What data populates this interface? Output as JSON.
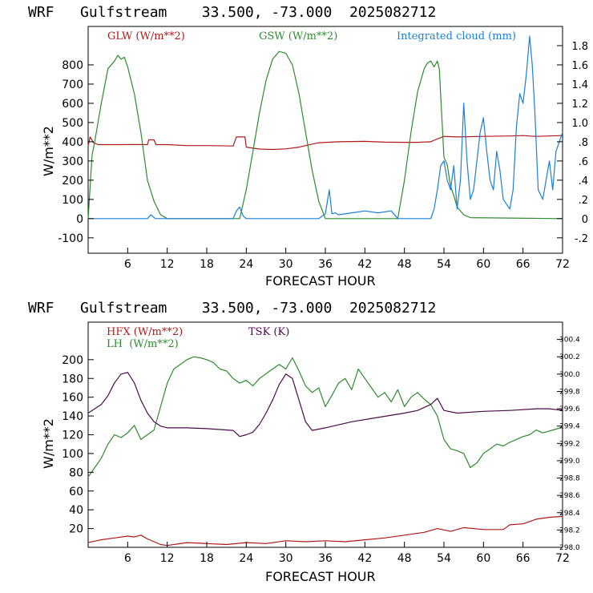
{
  "chart_data": [
    {
      "type": "line",
      "title": "WRF   Gulfstream    33.500, -73.000  2025082712",
      "xlabel": "FORECAST HOUR",
      "ylabel": "W/m**2",
      "xlim": [
        0,
        72
      ],
      "ylim": [
        -180,
        1000
      ],
      "y2lim": [
        -0.36,
        2.0
      ],
      "xticks": [
        6,
        12,
        18,
        24,
        30,
        36,
        42,
        48,
        54,
        60,
        66,
        72
      ],
      "yticks": [
        -100,
        0,
        100,
        200,
        300,
        400,
        500,
        600,
        700,
        800
      ],
      "y2ticks": [
        -0.2,
        0,
        0.2,
        0.4,
        0.6,
        0.8,
        1.0,
        1.2,
        1.4,
        1.6,
        1.8
      ],
      "y2ticklabels": [
        "-.2",
        "0",
        ".2",
        ".4",
        ".6",
        ".8",
        "1.0",
        "1.2",
        "1.4",
        "1.6",
        "1.8"
      ],
      "legend_position": "top",
      "series": [
        {
          "name": "GLW (W/m**2)",
          "color": "#b01818",
          "axis": "left",
          "x": [
            0,
            0.3,
            0.8,
            1.5,
            3,
            5,
            7,
            9,
            9.2,
            10,
            10.3,
            12,
            15,
            18,
            22,
            22.5,
            23.8,
            24,
            26,
            28,
            30,
            32,
            33,
            35,
            38,
            42,
            45,
            48,
            50,
            52,
            52.5,
            54,
            56,
            60,
            64,
            66,
            68,
            70,
            72
          ],
          "values": [
            380,
            425,
            395,
            385,
            385,
            385,
            386,
            385,
            410,
            410,
            385,
            385,
            380,
            380,
            378,
            425,
            425,
            372,
            362,
            360,
            363,
            372,
            380,
            395,
            400,
            402,
            398,
            397,
            397,
            400,
            408,
            428,
            425,
            428,
            430,
            432,
            428,
            430,
            432
          ]
        },
        {
          "name": "GSW (W/m**2)",
          "color": "#2e8b2e",
          "axis": "left",
          "x": [
            0,
            0.6,
            1,
            2,
            3,
            4,
            4.5,
            5,
            5.5,
            6,
            7,
            8,
            9,
            10,
            11,
            12,
            23,
            24,
            25,
            26,
            27,
            28,
            29,
            30,
            31,
            32,
            33,
            34,
            35,
            36,
            47,
            48,
            49,
            50,
            51,
            51.5,
            52,
            52.5,
            53,
            53.3,
            54,
            54.5,
            55,
            55.5,
            56,
            57,
            58,
            72
          ],
          "values": [
            0,
            330,
            400,
            600,
            780,
            820,
            850,
            830,
            840,
            790,
            650,
            450,
            200,
            90,
            20,
            0,
            0,
            150,
            350,
            550,
            720,
            830,
            870,
            860,
            800,
            650,
            450,
            250,
            90,
            0,
            0,
            200,
            450,
            660,
            780,
            810,
            820,
            790,
            820,
            780,
            320,
            280,
            170,
            120,
            60,
            20,
            5,
            0
          ]
        },
        {
          "name": "Integrated cloud (mm)",
          "color": "#1a7fd8",
          "axis": "right",
          "x": [
            0,
            9,
            9.5,
            10.2,
            12,
            22,
            22.5,
            23,
            23.5,
            24,
            30,
            35,
            36,
            36.6,
            37,
            37.5,
            38,
            40,
            42,
            44,
            46,
            47,
            52,
            52.5,
            53,
            53.5,
            54,
            54.5,
            55,
            55.5,
            56,
            56.5,
            57,
            57.5,
            58,
            58.5,
            59,
            59.5,
            60,
            60.5,
            61,
            61.5,
            62,
            62.5,
            63,
            63.5,
            64,
            64.5,
            65,
            65.5,
            66,
            66.5,
            67,
            67.4,
            67.8,
            68.3,
            69,
            69.5,
            70,
            70.5,
            71,
            71.5,
            72
          ],
          "values": [
            0,
            0,
            0.04,
            0,
            0,
            0,
            0.08,
            0.12,
            0.03,
            0,
            0,
            0,
            0.05,
            0.3,
            0.05,
            0.06,
            0.04,
            0.06,
            0.08,
            0.06,
            0.08,
            0,
            0,
            0.1,
            0.3,
            0.55,
            0.6,
            0.4,
            0.3,
            0.55,
            0.1,
            0.4,
            1.2,
            0.6,
            0.2,
            0.3,
            0.6,
            0.9,
            1.05,
            0.7,
            0.4,
            0.3,
            0.7,
            0.5,
            0.2,
            0.15,
            0.1,
            0.3,
            0.95,
            1.3,
            1.2,
            1.5,
            1.9,
            1.6,
            1.1,
            0.3,
            0.2,
            0.4,
            0.6,
            0.3,
            0.7,
            0.8,
            0.9
          ]
        }
      ]
    },
    {
      "type": "line",
      "title": "WRF   Gulfstream    33.500, -73.000  2025082712",
      "xlabel": "FORECAST HOUR",
      "ylabel": "W/m**2",
      "xlim": [
        0,
        72
      ],
      "ylim": [
        0,
        240
      ],
      "y2lim": [
        298.0,
        300.6
      ],
      "xticks": [
        6,
        12,
        18,
        24,
        30,
        36,
        42,
        48,
        54,
        60,
        66,
        72
      ],
      "yticks": [
        20,
        40,
        60,
        80,
        100,
        120,
        140,
        160,
        180,
        200
      ],
      "y2ticks": [
        298.0,
        298.2,
        298.4,
        298.6,
        298.8,
        299.0,
        299.2,
        299.4,
        299.6,
        299.8,
        300.0,
        300.2,
        300.4
      ],
      "y2ticklabels": [
        "298.0",
        "298.2",
        "298.4",
        "298.6",
        "298.8",
        "299.0",
        "299.2",
        "299.4",
        "299.6",
        "299.8",
        "300.0",
        "300.2",
        "300.4"
      ],
      "legend_position": "top",
      "series": [
        {
          "name": "HFX (W/m**2)",
          "color": "#b01818",
          "axis": "left",
          "x": [
            0,
            2,
            4,
            6,
            7,
            8,
            9,
            10,
            11,
            12,
            15,
            18,
            21,
            24,
            27,
            30,
            33,
            36,
            39,
            42,
            45,
            48,
            51,
            53,
            55,
            57,
            60,
            63,
            64,
            66,
            68,
            70,
            72
          ],
          "values": [
            5,
            8,
            10,
            12,
            11,
            13,
            9,
            6,
            3,
            2,
            5,
            4,
            3,
            5,
            4,
            7,
            6,
            7,
            6,
            8,
            10,
            13,
            16,
            20,
            17,
            21,
            19,
            19,
            24,
            25,
            30,
            32,
            33
          ]
        },
        {
          "name": "LH  (W/m**2)",
          "color": "#2e8b2e",
          "axis": "left",
          "x": [
            0,
            1,
            2,
            3,
            4,
            5,
            6,
            7,
            8,
            9,
            10,
            11,
            12,
            13,
            14,
            15,
            16,
            17,
            18,
            19,
            20,
            21,
            22,
            23,
            24,
            25,
            26,
            27,
            28,
            29,
            30,
            31,
            32,
            33,
            34,
            35,
            36,
            37,
            38,
            39,
            40,
            41,
            42,
            43,
            44,
            45,
            46,
            47,
            48,
            49,
            50,
            51,
            52,
            53,
            54,
            55,
            56,
            57,
            58,
            59,
            60,
            61,
            62,
            63,
            64,
            65,
            66,
            67,
            68,
            69,
            70,
            71,
            72
          ],
          "values": [
            75,
            85,
            95,
            110,
            120,
            117,
            122,
            130,
            115,
            120,
            125,
            150,
            175,
            190,
            195,
            200,
            203,
            202,
            200,
            197,
            190,
            188,
            180,
            175,
            178,
            172,
            180,
            185,
            190,
            195,
            190,
            202,
            188,
            172,
            165,
            170,
            150,
            162,
            175,
            180,
            168,
            190,
            180,
            170,
            160,
            165,
            155,
            168,
            150,
            160,
            165,
            158,
            152,
            140,
            115,
            105,
            103,
            100,
            85,
            90,
            100,
            105,
            110,
            108,
            112,
            115,
            118,
            120,
            125,
            122,
            124,
            126,
            128
          ]
        },
        {
          "name": "TSK (K)",
          "color": "#4b0a4b",
          "axis": "right",
          "x": [
            0,
            1,
            2,
            3,
            4,
            5,
            6,
            7,
            8,
            9,
            10,
            11,
            12,
            15,
            18,
            20,
            22,
            23,
            24,
            25,
            26,
            27,
            28,
            29,
            30,
            31,
            32,
            33,
            34,
            36,
            40,
            44,
            48,
            50,
            52,
            53,
            54,
            56,
            60,
            64,
            68,
            70,
            72
          ],
          "values": [
            299.55,
            299.6,
            299.65,
            299.75,
            299.9,
            300.0,
            300.02,
            299.9,
            299.7,
            299.55,
            299.45,
            299.4,
            299.38,
            299.38,
            299.37,
            299.36,
            299.35,
            299.28,
            299.3,
            299.33,
            299.42,
            299.55,
            299.7,
            299.88,
            300.0,
            299.95,
            299.7,
            299.45,
            299.35,
            299.38,
            299.45,
            299.5,
            299.55,
            299.58,
            299.65,
            299.72,
            299.58,
            299.55,
            299.57,
            299.58,
            299.6,
            299.6,
            299.58
          ]
        }
      ]
    }
  ]
}
